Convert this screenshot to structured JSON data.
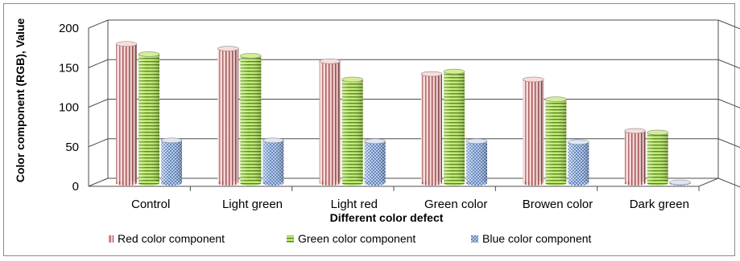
{
  "chart_data": {
    "type": "bar",
    "title": "",
    "xlabel": "Different color defect",
    "ylabel": "Color component  (RGB), Value",
    "ylim": [
      0,
      200
    ],
    "yticks": [
      0,
      50,
      100,
      150,
      200
    ],
    "grid": true,
    "legend_position": "bottom",
    "categories": [
      "Control",
      "Light green",
      "Light red",
      "Green color",
      "Browen color",
      "Dark green"
    ],
    "series": [
      {
        "name": "Red color component",
        "values": [
          175,
          169,
          153,
          137,
          130,
          65
        ],
        "color": "#f4c6c6",
        "stripe": "#9a4848"
      },
      {
        "name": "Green color component",
        "values": [
          162,
          160,
          130,
          140,
          105,
          63
        ],
        "color": "#bde36f",
        "stripe": "#4f8a12"
      },
      {
        "name": "Blue color component",
        "values": [
          53,
          53,
          52,
          52,
          51,
          0
        ],
        "color": "#c9d9f1",
        "stripe": "#4a74b4"
      }
    ]
  }
}
